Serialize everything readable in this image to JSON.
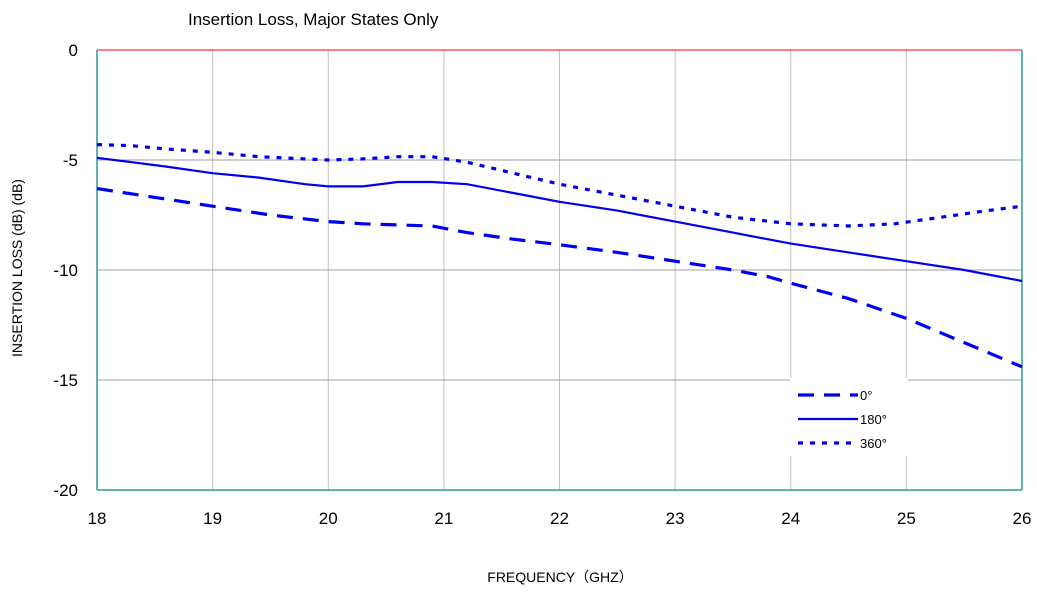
{
  "chart_data": {
    "type": "line",
    "title": "Insertion Loss, Major States Only",
    "xlabel": "FREQUENCY（GHZ）",
    "ylabel": "INSERTION LOSS (dB)  (dB)",
    "xlim": [
      18,
      26
    ],
    "ylim": [
      -20,
      0
    ],
    "xticks": [
      "18",
      "19",
      "20",
      "21",
      "22",
      "23",
      "24",
      "25",
      "26"
    ],
    "yticks": [
      "0",
      "-5",
      "-10",
      "-15",
      "-20"
    ],
    "grid": true,
    "legend_position": "bottom-right",
    "series": [
      {
        "name": "0°",
        "style": "dashed",
        "color": "#0000ee",
        "x": [
          18.0,
          18.5,
          19.0,
          19.5,
          20.0,
          20.3,
          20.6,
          20.9,
          21.2,
          21.6,
          22.0,
          22.5,
          23.0,
          23.5,
          23.8,
          24.0,
          24.5,
          25.0,
          25.5,
          26.0
        ],
        "y": [
          -6.3,
          -6.7,
          -7.1,
          -7.5,
          -7.8,
          -7.9,
          -7.95,
          -8.0,
          -8.3,
          -8.6,
          -8.85,
          -9.2,
          -9.6,
          -10.0,
          -10.3,
          -10.6,
          -11.3,
          -12.2,
          -13.3,
          -14.4
        ]
      },
      {
        "name": "180°",
        "style": "solid",
        "color": "#0000ee",
        "x": [
          18.0,
          18.3,
          18.6,
          19.0,
          19.4,
          19.8,
          20.0,
          20.3,
          20.6,
          20.9,
          21.2,
          21.6,
          22.0,
          22.5,
          23.0,
          23.5,
          23.8,
          24.0,
          24.5,
          25.0,
          25.5,
          26.0
        ],
        "y": [
          -4.9,
          -5.1,
          -5.3,
          -5.6,
          -5.8,
          -6.1,
          -6.2,
          -6.2,
          -6.0,
          -6.0,
          -6.1,
          -6.5,
          -6.9,
          -7.3,
          -7.8,
          -8.3,
          -8.6,
          -8.8,
          -9.2,
          -9.6,
          -10.0,
          -10.5
        ]
      },
      {
        "name": "360°",
        "style": "dotted",
        "color": "#0000ee",
        "x": [
          18.0,
          18.3,
          18.6,
          19.0,
          19.4,
          19.8,
          20.0,
          20.3,
          20.6,
          20.9,
          21.2,
          21.6,
          22.0,
          22.5,
          23.0,
          23.5,
          24.0,
          24.5,
          24.9,
          25.3,
          25.7,
          26.0
        ],
        "y": [
          -4.3,
          -4.35,
          -4.5,
          -4.65,
          -4.85,
          -4.95,
          -5.0,
          -4.95,
          -4.85,
          -4.85,
          -5.1,
          -5.6,
          -6.1,
          -6.6,
          -7.1,
          -7.6,
          -7.9,
          -8.0,
          -7.9,
          -7.6,
          -7.3,
          -7.1
        ]
      }
    ]
  }
}
